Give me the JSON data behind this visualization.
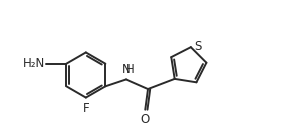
{
  "background_color": "#ffffff",
  "line_color": "#2a2a2a",
  "line_width": 1.4,
  "font_size": 8.5,
  "xlim": [
    0.0,
    10.5
  ],
  "ylim": [
    0.5,
    5.5
  ]
}
